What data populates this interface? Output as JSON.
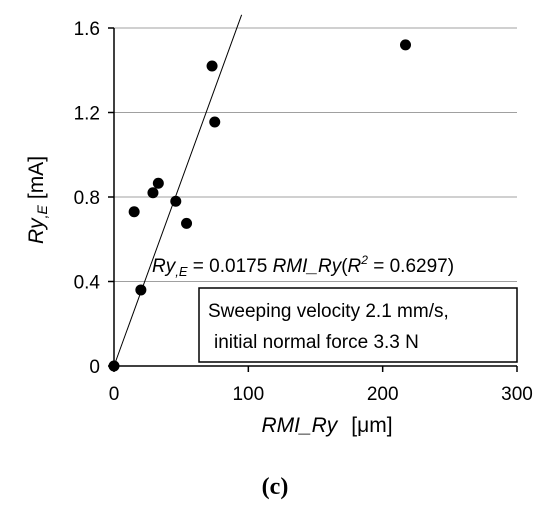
{
  "chart_data": {
    "type": "scatter",
    "panel_label": "(c)",
    "xlabel_main": "RMI_Ry",
    "xlabel_unit": "[μm]",
    "ylabel_main": "Ry",
    "ylabel_sub": ",E",
    "ylabel_unit": "[mA]",
    "xlim": [
      0,
      300
    ],
    "ylim": [
      0,
      1.6
    ],
    "x_ticks": [
      "0",
      "100",
      "200",
      "300"
    ],
    "y_ticks": [
      "0",
      "0.4",
      "0.8",
      "1.2",
      "1.6"
    ],
    "x_tick_values": [
      0,
      100,
      200,
      300
    ],
    "y_tick_values": [
      0,
      0.4,
      0.8,
      1.2,
      1.6
    ],
    "grid": "horizontal",
    "points": [
      {
        "x": 0,
        "y": 0
      },
      {
        "x": 15,
        "y": 0.73
      },
      {
        "x": 20,
        "y": 0.36
      },
      {
        "x": 29,
        "y": 0.82
      },
      {
        "x": 33,
        "y": 0.865
      },
      {
        "x": 46,
        "y": 0.78
      },
      {
        "x": 54,
        "y": 0.675
      },
      {
        "x": 73,
        "y": 1.42
      },
      {
        "x": 75,
        "y": 1.155
      },
      {
        "x": 217,
        "y": 1.52
      }
    ],
    "fit_line": {
      "slope": 0.0175,
      "intercept": 0,
      "x_range": [
        0,
        95
      ]
    },
    "equation": {
      "lhs_main": "Ry",
      "lhs_sub": ",E",
      "mid": " = 0.0175 ",
      "term": "RMI_Ry",
      "paren_open": "(",
      "r_symbol": "R",
      "r_exp": "2",
      "r_value": " = 0.6297)"
    },
    "annotation": {
      "line1": "Sweeping velocity 2.1 mm/s,",
      "line2": "initial normal force 3.3 N"
    }
  }
}
